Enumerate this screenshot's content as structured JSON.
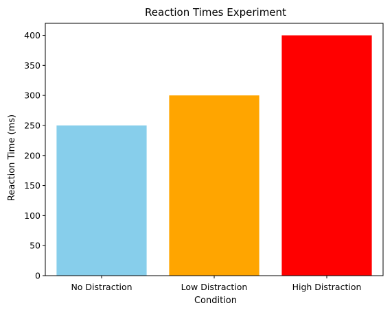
{
  "chart_data": {
    "type": "bar",
    "title": "Reaction Times Experiment",
    "xlabel": "Condition",
    "ylabel": "Reaction Time (ms)",
    "categories": [
      "No Distraction",
      "Low Distraction",
      "High Distraction"
    ],
    "values": [
      250,
      300,
      400
    ],
    "colors": [
      "#87CEEB",
      "#FFA500",
      "#FF0000"
    ],
    "ylim": [
      0,
      420
    ],
    "yticks": [
      0,
      50,
      100,
      150,
      200,
      250,
      300,
      350,
      400
    ],
    "grid": false,
    "legend": "none"
  }
}
